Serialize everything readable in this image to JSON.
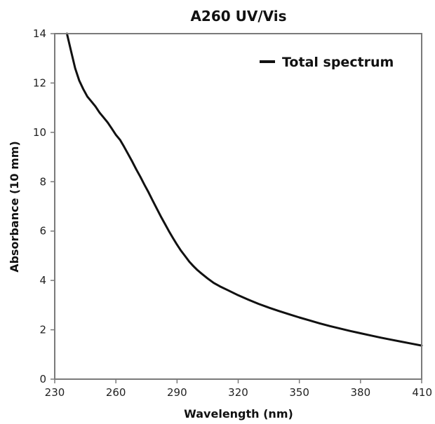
{
  "chart_data": {
    "type": "line",
    "title": "A260 UV/Vis",
    "xlabel": "Wavelength (nm)",
    "ylabel": "Absorbance (10 mm)",
    "xlim": [
      230,
      410
    ],
    "ylim": [
      0,
      14
    ],
    "xticks": [
      230,
      260,
      290,
      320,
      350,
      380,
      410
    ],
    "yticks": [
      0,
      2,
      4,
      6,
      8,
      10,
      12,
      14
    ],
    "grid": false,
    "legend_position": "top-right",
    "series": [
      {
        "name": "Total spectrum",
        "color": "#111111",
        "x": [
          236,
          238,
          240,
          242,
          244,
          246,
          248,
          250,
          252,
          254,
          256,
          258,
          260,
          262,
          264,
          266,
          268,
          270,
          272,
          274,
          276,
          278,
          280,
          282,
          284,
          286,
          288,
          290,
          292,
          294,
          296,
          298,
          300,
          302,
          305,
          308,
          311,
          315,
          320,
          325,
          330,
          335,
          340,
          345,
          350,
          355,
          360,
          365,
          370,
          375,
          380,
          385,
          390,
          395,
          400,
          405,
          410
        ],
        "y": [
          14.0,
          13.3,
          12.6,
          12.1,
          11.75,
          11.45,
          11.25,
          11.05,
          10.8,
          10.6,
          10.4,
          10.15,
          9.9,
          9.7,
          9.42,
          9.12,
          8.82,
          8.5,
          8.2,
          7.88,
          7.57,
          7.24,
          6.92,
          6.6,
          6.3,
          6.0,
          5.72,
          5.45,
          5.2,
          4.98,
          4.76,
          4.58,
          4.42,
          4.28,
          4.08,
          3.9,
          3.76,
          3.6,
          3.4,
          3.22,
          3.05,
          2.9,
          2.76,
          2.63,
          2.5,
          2.38,
          2.26,
          2.15,
          2.05,
          1.95,
          1.86,
          1.77,
          1.68,
          1.6,
          1.52,
          1.44,
          1.36
        ]
      }
    ]
  }
}
